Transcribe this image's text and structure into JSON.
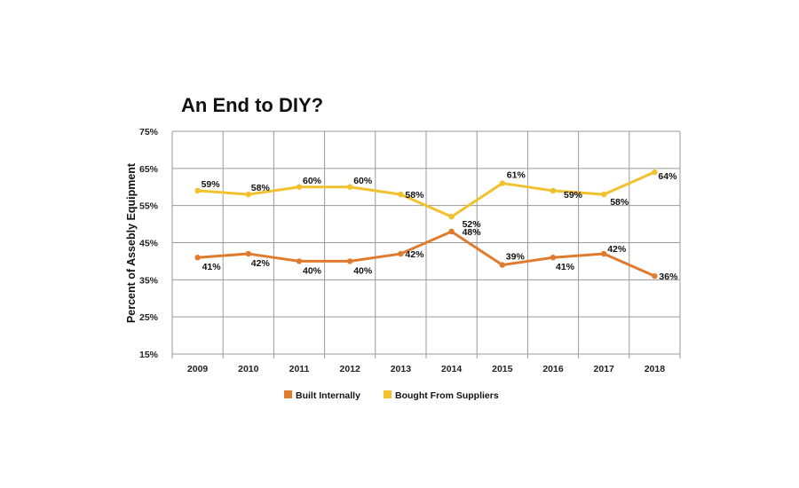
{
  "chart_data": {
    "type": "line",
    "title": "An End to DIY?",
    "xlabel": "",
    "ylabel": "Percent of Assebly Equipment",
    "categories": [
      "2009",
      "2010",
      "2011",
      "2012",
      "2013",
      "2014",
      "2015",
      "2016",
      "2017",
      "2018"
    ],
    "ylim": [
      15,
      75
    ],
    "yticks": [
      15,
      25,
      35,
      45,
      55,
      65,
      75
    ],
    "ytick_labels": [
      "15%",
      "25%",
      "35%",
      "45%",
      "55%",
      "65%",
      "75%"
    ],
    "series": [
      {
        "name": "Built Internally",
        "color": "#E07B2E",
        "values": [
          41,
          42,
          40,
          40,
          42,
          48,
          39,
          41,
          42,
          36
        ],
        "labels": [
          "41%",
          "42%",
          "40%",
          "40%",
          "42%",
          "48%",
          "39%",
          "41%",
          "42%",
          "36%"
        ]
      },
      {
        "name": "Bought From Suppliers",
        "color": "#F2C12E",
        "values": [
          59,
          58,
          60,
          60,
          58,
          52,
          61,
          59,
          58,
          64
        ],
        "labels": [
          "59%",
          "58%",
          "60%",
          "60%",
          "58%",
          "52%",
          "61%",
          "59%",
          "58%",
          "64%"
        ]
      }
    ],
    "grid": true,
    "legend": "bottom-center"
  }
}
